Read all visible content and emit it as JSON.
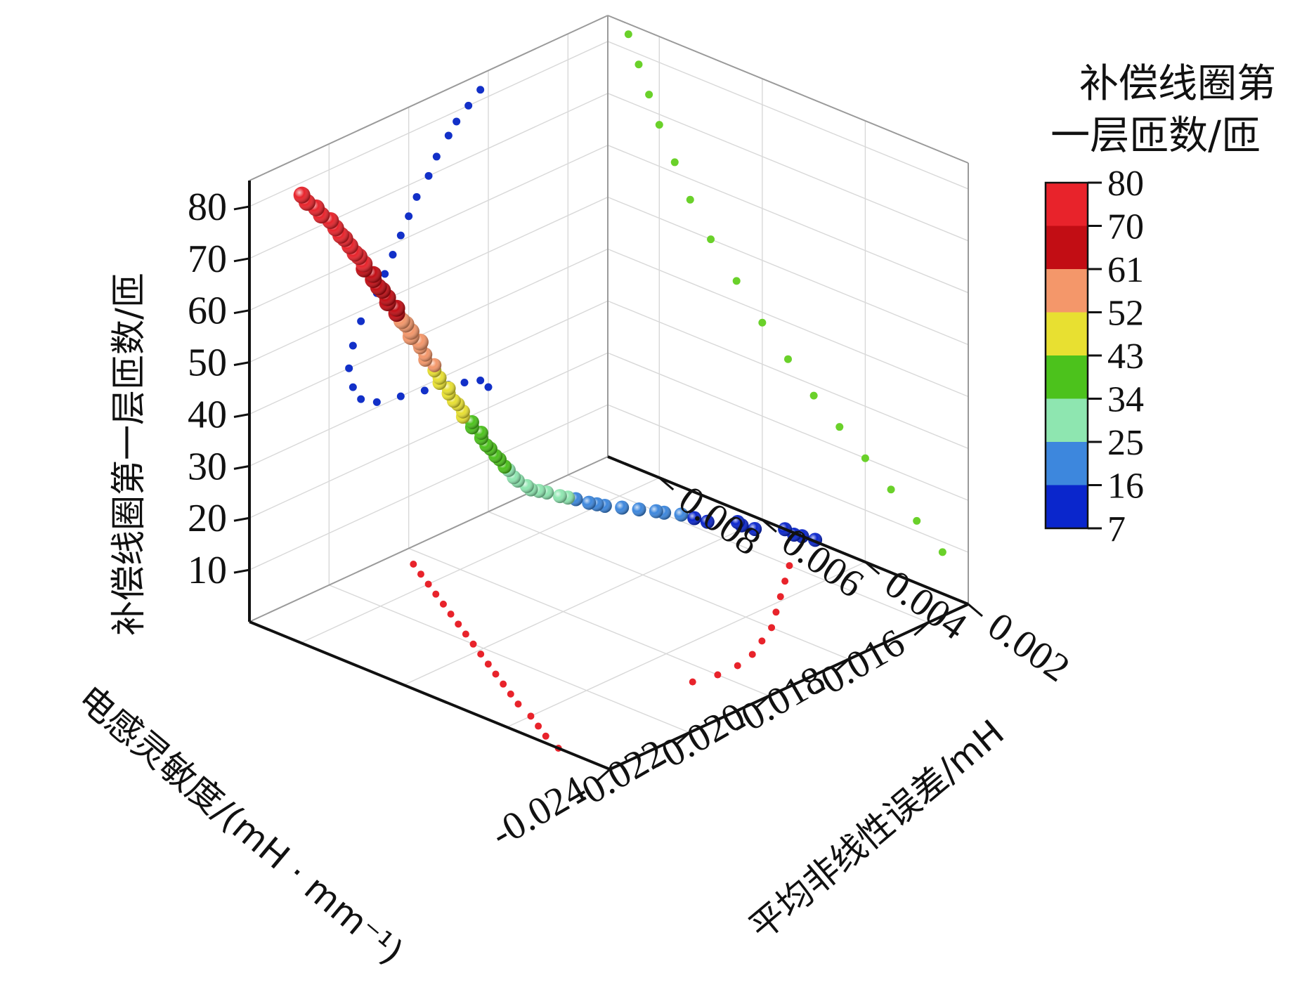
{
  "chart_data": {
    "type": "scatter",
    "projection": "3d",
    "x_axis": {
      "label": "电感灵敏度/(mH · mm⁻¹)",
      "range": [
        -0.024,
        -0.015
      ],
      "ticks": [
        "-0.024",
        "-0.022",
        "-0.020",
        "-0.018",
        "-0.016"
      ]
    },
    "y_axis": {
      "label": "平均非线性误差/mH",
      "range": [
        0.002,
        0.009
      ],
      "ticks": [
        "0.002",
        "0.004",
        "0.006",
        "0.008"
      ]
    },
    "z_axis": {
      "label": "补偿线圈第一层匝数/匝",
      "range": [
        0,
        85
      ],
      "ticks": [
        "10",
        "20",
        "30",
        "40",
        "50",
        "60",
        "70",
        "80"
      ]
    },
    "colorbar": {
      "title_line1": "补偿线圈第",
      "title_line2": "一层匝数/匝",
      "ticks": [
        "80",
        "70",
        "61",
        "52",
        "43",
        "34",
        "25",
        "16",
        "7"
      ],
      "colors": [
        "#e8232b",
        "#c20d14",
        "#f4976a",
        "#e8e031",
        "#4cc21c",
        "#8ee6b0",
        "#3d87dd",
        "#0a26cc"
      ]
    },
    "series": [
      {
        "role": "main-3d",
        "points": [
          [
            -0.016,
            0.0042,
            7
          ],
          [
            -0.0162,
            0.0043,
            8
          ],
          [
            -0.0164,
            0.0043,
            9
          ],
          [
            -0.0165,
            0.0044,
            10
          ],
          [
            -0.017,
            0.0046,
            11
          ],
          [
            -0.0172,
            0.0047,
            12
          ],
          [
            -0.0173,
            0.0047,
            13
          ],
          [
            -0.0178,
            0.0049,
            14
          ],
          [
            -0.018,
            0.005,
            15
          ],
          [
            -0.0182,
            0.0051,
            16
          ],
          [
            -0.0185,
            0.0052,
            17
          ],
          [
            -0.0187,
            0.0052,
            18
          ],
          [
            -0.019,
            0.0053,
            19
          ],
          [
            -0.0193,
            0.0054,
            20
          ],
          [
            -0.0196,
            0.0055,
            21
          ],
          [
            -0.0198,
            0.0055,
            22
          ],
          [
            -0.02,
            0.0055,
            23
          ],
          [
            -0.0202,
            0.0056,
            24
          ],
          [
            -0.0204,
            0.0056,
            25
          ],
          [
            -0.0206,
            0.0056,
            26
          ],
          [
            -0.0208,
            0.0057,
            27
          ],
          [
            -0.021,
            0.0057,
            28
          ],
          [
            -0.0212,
            0.0057,
            29
          ],
          [
            -0.0213,
            0.0057,
            30
          ],
          [
            -0.0214,
            0.0058,
            31
          ],
          [
            -0.0215,
            0.0058,
            32
          ],
          [
            -0.0215,
            0.0059,
            33
          ],
          [
            -0.0216,
            0.0059,
            34
          ],
          [
            -0.0216,
            0.006,
            35
          ],
          [
            -0.0217,
            0.006,
            36
          ],
          [
            -0.0217,
            0.0061,
            37
          ],
          [
            -0.0218,
            0.0061,
            38
          ],
          [
            -0.0218,
            0.0062,
            39
          ],
          [
            -0.0218,
            0.0062,
            40
          ],
          [
            -0.0219,
            0.0063,
            41
          ],
          [
            -0.0219,
            0.0063,
            42
          ],
          [
            -0.022,
            0.0064,
            43
          ],
          [
            -0.022,
            0.0064,
            44
          ],
          [
            -0.022,
            0.0065,
            45
          ],
          [
            -0.0221,
            0.0065,
            46
          ],
          [
            -0.0221,
            0.0066,
            47
          ],
          [
            -0.0221,
            0.0066,
            48
          ],
          [
            -0.0222,
            0.0067,
            49
          ],
          [
            -0.0222,
            0.0067,
            50
          ],
          [
            -0.0222,
            0.0068,
            51
          ],
          [
            -0.0222,
            0.0068,
            52
          ],
          [
            -0.0223,
            0.0069,
            53
          ],
          [
            -0.0223,
            0.0069,
            54
          ],
          [
            -0.0223,
            0.007,
            55
          ],
          [
            -0.0223,
            0.007,
            56
          ],
          [
            -0.0224,
            0.0071,
            57
          ],
          [
            -0.0224,
            0.0071,
            58
          ],
          [
            -0.0224,
            0.0072,
            59
          ],
          [
            -0.0225,
            0.0072,
            60
          ],
          [
            -0.0225,
            0.0073,
            61
          ],
          [
            -0.0225,
            0.0073,
            62
          ],
          [
            -0.0226,
            0.0074,
            63
          ],
          [
            -0.0226,
            0.0074,
            64
          ],
          [
            -0.0226,
            0.0075,
            65
          ],
          [
            -0.0227,
            0.0075,
            66
          ],
          [
            -0.0227,
            0.0076,
            67
          ],
          [
            -0.0227,
            0.0076,
            68
          ],
          [
            -0.0228,
            0.0077,
            69
          ],
          [
            -0.0228,
            0.0077,
            70
          ],
          [
            -0.0228,
            0.0078,
            71
          ],
          [
            -0.0229,
            0.0078,
            72
          ],
          [
            -0.0229,
            0.0079,
            73
          ],
          [
            -0.0229,
            0.008,
            74
          ],
          [
            -0.023,
            0.008,
            75
          ],
          [
            -0.023,
            0.0081,
            76
          ],
          [
            -0.023,
            0.0082,
            77
          ],
          [
            -0.0231,
            0.0083,
            78
          ],
          [
            -0.0231,
            0.0084,
            79
          ],
          [
            -0.0232,
            0.0085,
            80
          ],
          [
            -0.0232,
            0.0086,
            81
          ]
        ]
      },
      {
        "role": "floor-projection",
        "points": [
          [
            -0.024,
            0.003
          ],
          [
            -0.0238,
            0.0034
          ],
          [
            -0.0236,
            0.0037
          ],
          [
            -0.0234,
            0.004
          ],
          [
            -0.0232,
            0.0044
          ],
          [
            -0.023,
            0.0047
          ],
          [
            -0.0228,
            0.005
          ],
          [
            -0.0226,
            0.0053
          ],
          [
            -0.0224,
            0.0056
          ],
          [
            -0.0222,
            0.0059
          ],
          [
            -0.022,
            0.0062
          ],
          [
            -0.0218,
            0.0065
          ],
          [
            -0.0216,
            0.0068
          ],
          [
            -0.0214,
            0.0071
          ],
          [
            -0.0212,
            0.0074
          ],
          [
            -0.021,
            0.0077
          ],
          [
            -0.0208,
            0.008
          ],
          [
            -0.0206,
            0.0083
          ],
          [
            -0.0204,
            0.0086
          ],
          [
            -0.0205,
            0.0031
          ],
          [
            -0.02,
            0.003
          ],
          [
            -0.0195,
            0.003
          ],
          [
            -0.019,
            0.0031
          ],
          [
            -0.0185,
            0.0033
          ],
          [
            -0.018,
            0.0035
          ],
          [
            -0.0175,
            0.0038
          ],
          [
            -0.017,
            0.0041
          ],
          [
            -0.0165,
            0.0044
          ],
          [
            -0.016,
            0.0047
          ]
        ]
      },
      {
        "role": "left-wall-projection",
        "points": [
          [
            -0.018,
            24
          ],
          [
            -0.0182,
            26
          ],
          [
            -0.0186,
            27
          ],
          [
            -0.019,
            28
          ],
          [
            -0.0196,
            29
          ],
          [
            -0.0202,
            30
          ],
          [
            -0.0208,
            31
          ],
          [
            -0.0212,
            33
          ],
          [
            -0.0214,
            36
          ],
          [
            -0.0215,
            40
          ],
          [
            -0.0214,
            44
          ],
          [
            -0.0212,
            48
          ],
          [
            -0.0208,
            52
          ],
          [
            -0.0206,
            55
          ],
          [
            -0.0204,
            58
          ],
          [
            -0.0202,
            61
          ],
          [
            -0.02,
            64
          ],
          [
            -0.0198,
            67
          ],
          [
            -0.0195,
            70
          ],
          [
            -0.0193,
            73
          ],
          [
            -0.019,
            76
          ],
          [
            -0.0188,
            78
          ],
          [
            -0.0185,
            80
          ],
          [
            -0.0182,
            82
          ]
        ]
      },
      {
        "role": "right-wall-projection",
        "points": [
          [
            0.0025,
            8
          ],
          [
            0.003,
            12
          ],
          [
            0.0035,
            16
          ],
          [
            0.004,
            20
          ],
          [
            0.0045,
            24
          ],
          [
            0.005,
            28
          ],
          [
            0.0055,
            33
          ],
          [
            0.006,
            38
          ],
          [
            0.0065,
            44
          ],
          [
            0.007,
            50
          ],
          [
            0.0074,
            56
          ],
          [
            0.0077,
            62
          ],
          [
            0.008,
            68
          ],
          [
            0.0082,
            73
          ],
          [
            0.0084,
            78
          ],
          [
            0.0086,
            83
          ]
        ]
      }
    ]
  }
}
